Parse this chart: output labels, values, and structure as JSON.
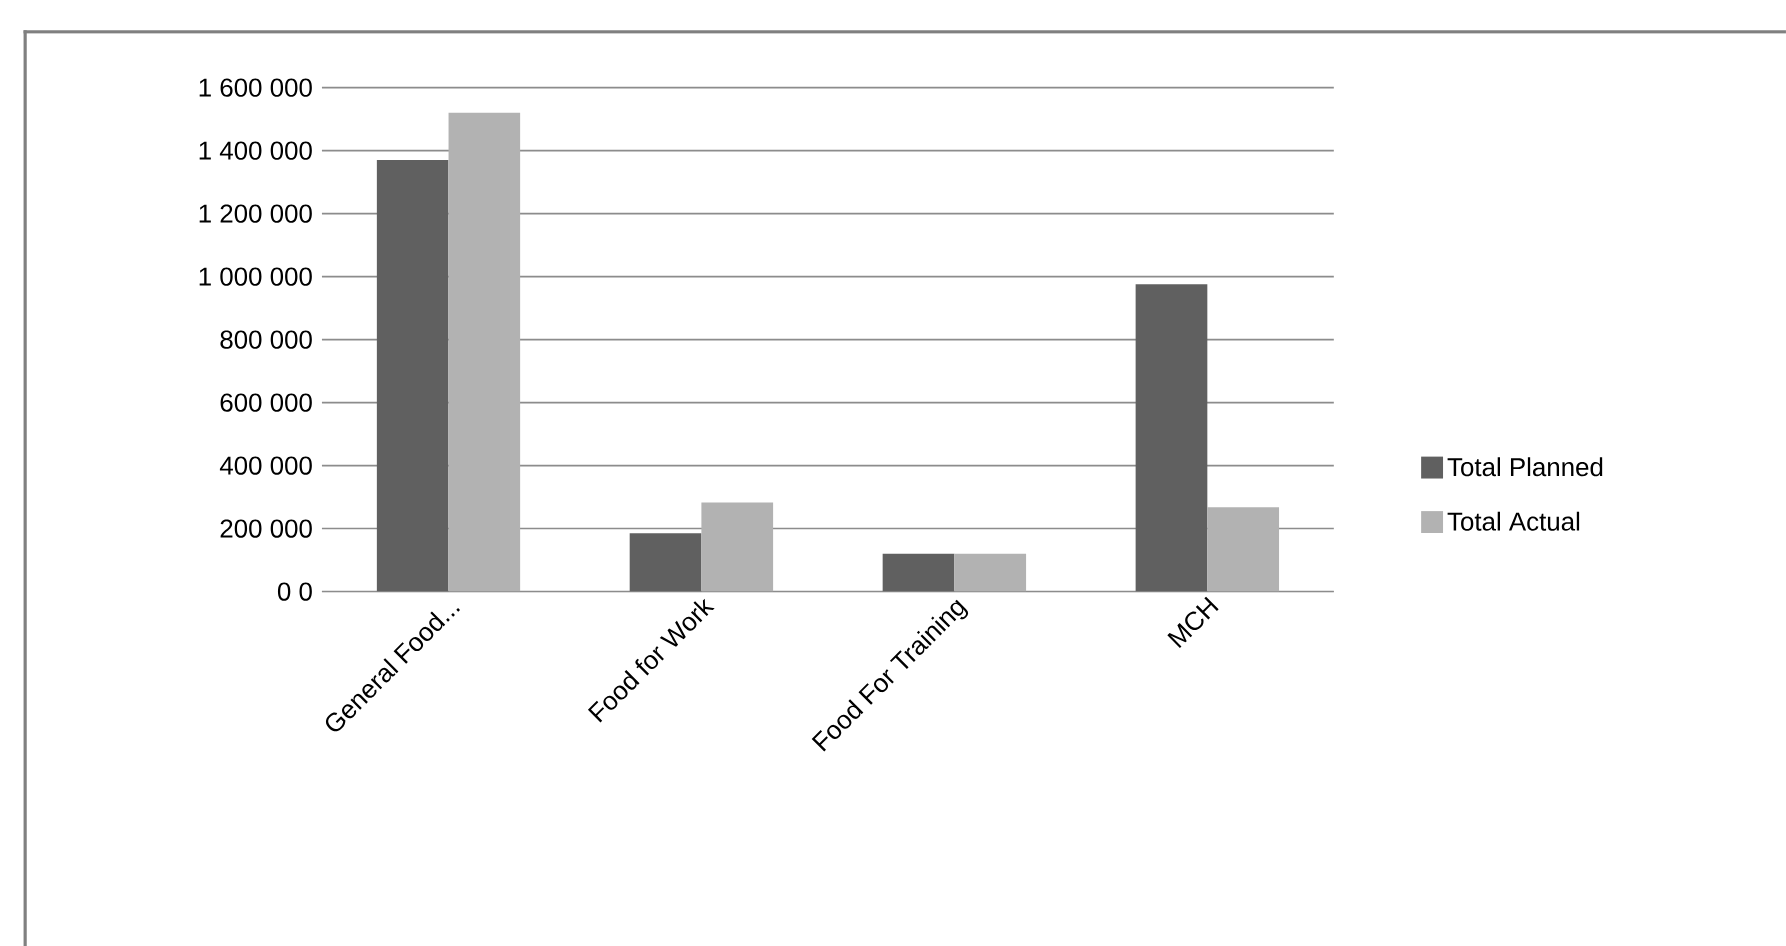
{
  "chart_data": {
    "type": "bar",
    "categories": [
      "General Food...",
      "Food for Work",
      "Food For Training",
      "MCH"
    ],
    "series": [
      {
        "name": "Total Planned",
        "color": "#606060",
        "values": [
          1370000,
          185000,
          120000,
          976000
        ]
      },
      {
        "name": "Total Actual",
        "color": "#b2b2b2",
        "values": [
          1520000,
          283000,
          120000,
          268000
        ]
      }
    ],
    "ylim": [
      0,
      1600000
    ],
    "yticks": [
      {
        "value": 0,
        "label": "0 0"
      },
      {
        "value": 200000,
        "label": "200 000"
      },
      {
        "value": 400000,
        "label": "400 000"
      },
      {
        "value": 600000,
        "label": "600 000"
      },
      {
        "value": 800000,
        "label": "800 000"
      },
      {
        "value": 1000000,
        "label": "1 000 000"
      },
      {
        "value": 1200000,
        "label": "1 200 000"
      },
      {
        "value": 1400000,
        "label": "1 400 000"
      },
      {
        "value": 1600000,
        "label": "1 600 000"
      }
    ],
    "grid": "y",
    "legend": "right"
  }
}
